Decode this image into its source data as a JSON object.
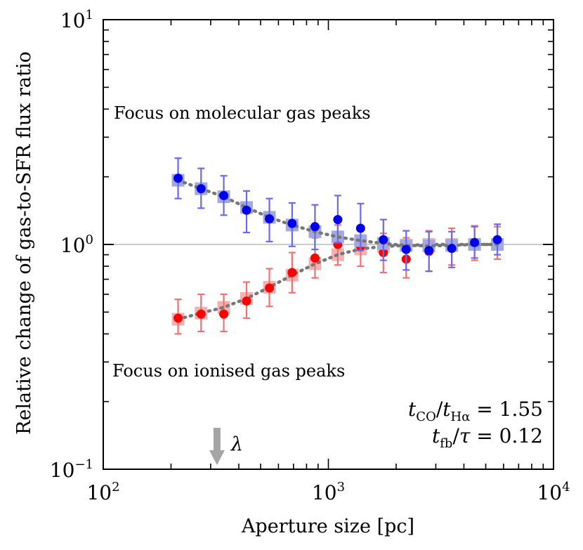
{
  "chart_data": {
    "type": "scatter",
    "title": "",
    "xlabel": "Aperture size [pc]",
    "ylabel": "Relative change of gas-to-SFR flux ratio",
    "x_scale": "log",
    "y_scale": "log",
    "xlim": [
      100,
      10000
    ],
    "ylim": [
      0.1,
      10
    ],
    "x_ticks": [
      {
        "value": 100,
        "base": "10",
        "exp": "2"
      },
      {
        "value": 1000,
        "base": "10",
        "exp": "3"
      },
      {
        "value": 10000,
        "base": "10",
        "exp": "4"
      }
    ],
    "y_ticks": [
      {
        "value": 0.1,
        "base": "10",
        "exp": "−1"
      },
      {
        "value": 1,
        "base": "10",
        "exp": "0"
      },
      {
        "value": 10,
        "base": "10",
        "exp": "1"
      }
    ],
    "reference_line_y": 1,
    "series": [
      {
        "name": "Focus on molecular gas peaks",
        "color": "#0000ee",
        "errorbar_color": "#6a6af0",
        "model_color": "#a3a9df",
        "x": [
          215,
          272,
          343,
          433,
          547,
          690,
          872,
          1101,
          1390,
          1755,
          2216,
          2797,
          3532,
          4460,
          5630
        ],
        "y": [
          1.97,
          1.77,
          1.65,
          1.42,
          1.3,
          1.24,
          1.2,
          1.29,
          1.18,
          1.05,
          0.95,
          0.94,
          0.96,
          1.02,
          1.05
        ],
        "yerr_low": [
          1.6,
          1.45,
          1.35,
          1.13,
          1.03,
          0.98,
          0.95,
          1.02,
          0.94,
          0.85,
          0.77,
          0.76,
          0.79,
          0.87,
          0.9
        ],
        "yerr_high": [
          2.42,
          2.18,
          2.02,
          1.73,
          1.6,
          1.53,
          1.5,
          1.65,
          1.52,
          1.29,
          1.15,
          1.14,
          1.14,
          1.2,
          1.23
        ],
        "model": [
          1.93,
          1.77,
          1.63,
          1.46,
          1.32,
          1.22,
          1.14,
          1.08,
          1.04,
          1.01,
          0.99,
          0.985,
          0.99,
          1.0,
          1.0
        ]
      },
      {
        "name": "Focus on ionised gas peaks",
        "color": "#ff0000",
        "errorbar_color": "#f07272",
        "model_color": "#f4b1b1",
        "x": [
          215,
          272,
          343,
          433,
          547,
          690,
          872,
          1101,
          1390,
          1755,
          2216,
          2797,
          3532,
          4460,
          5630
        ],
        "y": [
          0.47,
          0.49,
          0.49,
          0.56,
          0.64,
          0.75,
          0.87,
          1.0,
          0.98,
          0.92,
          0.86,
          0.93,
          0.98,
          1.02,
          1.02
        ],
        "yerr_low": [
          0.4,
          0.41,
          0.41,
          0.47,
          0.53,
          0.61,
          0.71,
          0.81,
          0.8,
          0.75,
          0.71,
          0.76,
          0.81,
          0.85,
          0.86
        ],
        "yerr_high": [
          0.57,
          0.6,
          0.6,
          0.68,
          0.78,
          0.92,
          1.07,
          1.22,
          1.19,
          1.12,
          1.07,
          1.15,
          1.18,
          1.21,
          1.2
        ],
        "model": [
          0.465,
          0.495,
          0.525,
          0.575,
          0.645,
          0.73,
          0.82,
          0.9,
          0.955,
          0.98,
          0.99,
          1.0,
          1.0,
          1.0,
          1.0
        ]
      }
    ],
    "model_line_color": "#777777",
    "annotations": {
      "molecular_label": "Focus on molecular gas peaks",
      "ionised_label": "Focus on ionised gas peaks",
      "lambda_symbol": "λ",
      "lambda_x": 320,
      "lambda_color": "#a5a5a5",
      "param_line1": "t_CO / t_Hα = 1.55",
      "param_line2": "t_fb / τ = 0.12"
    }
  }
}
